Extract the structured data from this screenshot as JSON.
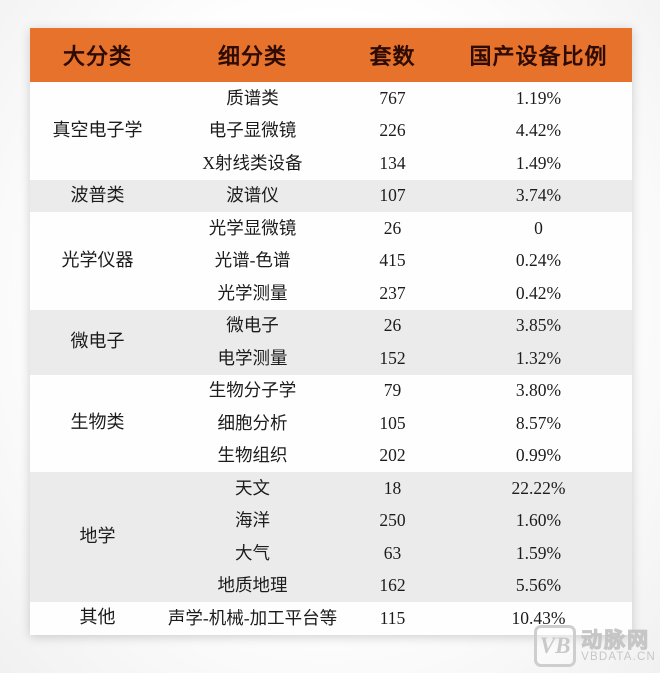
{
  "header": {
    "columns": [
      "大分类",
      "细分类",
      "套数",
      "国产设备比例"
    ]
  },
  "groups": [
    {
      "category": "真空电子学",
      "shade": "white",
      "rows": [
        {
          "sub": "质谱类",
          "count": "767",
          "ratio": "1.19%"
        },
        {
          "sub": "电子显微镜",
          "count": "226",
          "ratio": "4.42%"
        },
        {
          "sub": "X射线类设备",
          "count": "134",
          "ratio": "1.49%"
        }
      ]
    },
    {
      "category": "波普类",
      "shade": "gray",
      "rows": [
        {
          "sub": "波谱仪",
          "count": "107",
          "ratio": "3.74%"
        }
      ]
    },
    {
      "category": "光学仪器",
      "shade": "white",
      "rows": [
        {
          "sub": "光学显微镜",
          "count": "26",
          "ratio": "0"
        },
        {
          "sub": "光谱-色谱",
          "count": "415",
          "ratio": "0.24%"
        },
        {
          "sub": "光学测量",
          "count": "237",
          "ratio": "0.42%"
        }
      ]
    },
    {
      "category": "微电子",
      "shade": "gray",
      "rows": [
        {
          "sub": "微电子",
          "count": "26",
          "ratio": "3.85%"
        },
        {
          "sub": "电学测量",
          "count": "152",
          "ratio": "1.32%"
        }
      ]
    },
    {
      "category": "生物类",
      "shade": "white",
      "rows": [
        {
          "sub": "生物分子学",
          "count": "79",
          "ratio": "3.80%"
        },
        {
          "sub": "细胞分析",
          "count": "105",
          "ratio": "8.57%"
        },
        {
          "sub": "生物组织",
          "count": "202",
          "ratio": "0.99%"
        }
      ]
    },
    {
      "category": "地学",
      "shade": "gray",
      "rows": [
        {
          "sub": "天文",
          "count": "18",
          "ratio": "22.22%"
        },
        {
          "sub": "海洋",
          "count": "250",
          "ratio": "1.60%"
        },
        {
          "sub": "大气",
          "count": "63",
          "ratio": "1.59%"
        },
        {
          "sub": "地质地理",
          "count": "162",
          "ratio": "5.56%"
        }
      ]
    },
    {
      "category": "其他",
      "shade": "white",
      "rows": [
        {
          "sub": "声学-机械-加工平台等",
          "count": "115",
          "ratio": "10.43%"
        }
      ]
    }
  ],
  "watermark": {
    "logo": "VB",
    "name": "动脉网",
    "url": "VBDATA.CN"
  },
  "colors": {
    "header_bg": "#e7722b",
    "header_text": "#2f0c03",
    "row_gray": "#ebebeb",
    "row_white": "#fefefe",
    "body_text": "#1c1c1c",
    "watermark": "#c7c7c7"
  },
  "chart_data": {
    "type": "table",
    "title": "",
    "columns": [
      "大分类",
      "细分类",
      "套数",
      "国产设备比例"
    ],
    "rows": [
      [
        "真空电子学",
        "质谱类",
        767,
        "1.19%"
      ],
      [
        "真空电子学",
        "电子显微镜",
        226,
        "4.42%"
      ],
      [
        "真空电子学",
        "X射线类设备",
        134,
        "1.49%"
      ],
      [
        "波普类",
        "波谱仪",
        107,
        "3.74%"
      ],
      [
        "光学仪器",
        "光学显微镜",
        26,
        "0"
      ],
      [
        "光学仪器",
        "光谱-色谱",
        415,
        "0.24%"
      ],
      [
        "光学仪器",
        "光学测量",
        237,
        "0.42%"
      ],
      [
        "微电子",
        "微电子",
        26,
        "3.85%"
      ],
      [
        "微电子",
        "电学测量",
        152,
        "1.32%"
      ],
      [
        "生物类",
        "生物分子学",
        79,
        "3.80%"
      ],
      [
        "生物类",
        "细胞分析",
        105,
        "8.57%"
      ],
      [
        "生物类",
        "生物组织",
        202,
        "0.99%"
      ],
      [
        "地学",
        "天文",
        18,
        "22.22%"
      ],
      [
        "地学",
        "海洋",
        250,
        "1.60%"
      ],
      [
        "地学",
        "大气",
        63,
        "1.59%"
      ],
      [
        "地学",
        "地质地理",
        162,
        "5.56%"
      ],
      [
        "其他",
        "声学-机械-加工平台等",
        115,
        "10.43%"
      ]
    ]
  }
}
